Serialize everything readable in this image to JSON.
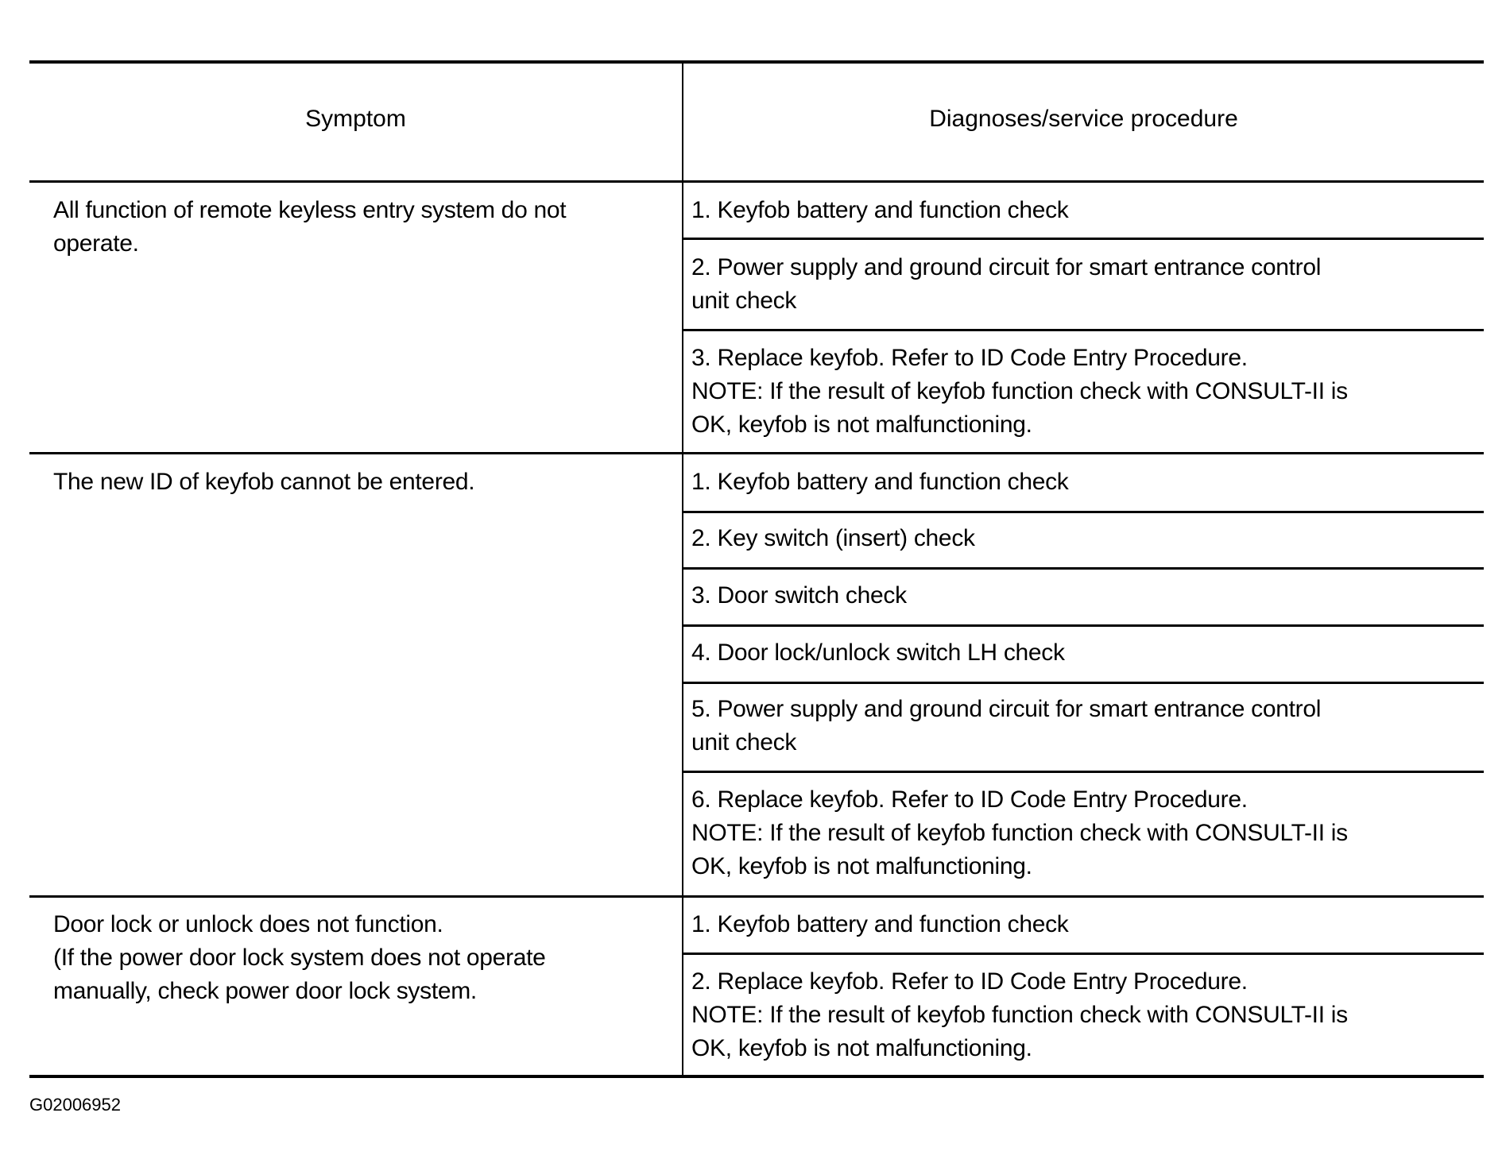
{
  "table": {
    "headers": [
      "Symptom",
      "Diagnoses/service procedure"
    ],
    "rows": [
      {
        "symptom": "All function of remote keyless entry system do not\noperate.",
        "procedures": [
          "1. Keyfob battery and function check",
          "2. Power supply and ground circuit for smart entrance control\nunit check",
          "3. Replace keyfob. Refer to ID Code Entry Procedure.\nNOTE: If the result of keyfob function check with CONSULT-II is\nOK, keyfob is not malfunctioning."
        ]
      },
      {
        "symptom": "The new ID of keyfob cannot be entered.",
        "procedures": [
          "1. Keyfob battery and function check",
          "2. Key switch (insert) check",
          "3. Door switch check",
          "4. Door lock/unlock switch LH check",
          "5. Power supply and ground circuit for smart entrance control\nunit check",
          "6. Replace keyfob. Refer to ID Code Entry Procedure.\nNOTE: If the result of keyfob function check with CONSULT-II is\nOK, keyfob is not malfunctioning."
        ]
      },
      {
        "symptom": "Door lock or unlock does not function.\n(If the power door lock system does not operate\nmanually, check power door lock system.",
        "procedures": [
          "1. Keyfob battery and function check",
          "2. Replace keyfob. Refer to ID Code Entry Procedure.\nNOTE: If the result of keyfob function check with CONSULT-II is\nOK, keyfob is not malfunctioning."
        ]
      }
    ]
  },
  "figure_id": "G02006952"
}
